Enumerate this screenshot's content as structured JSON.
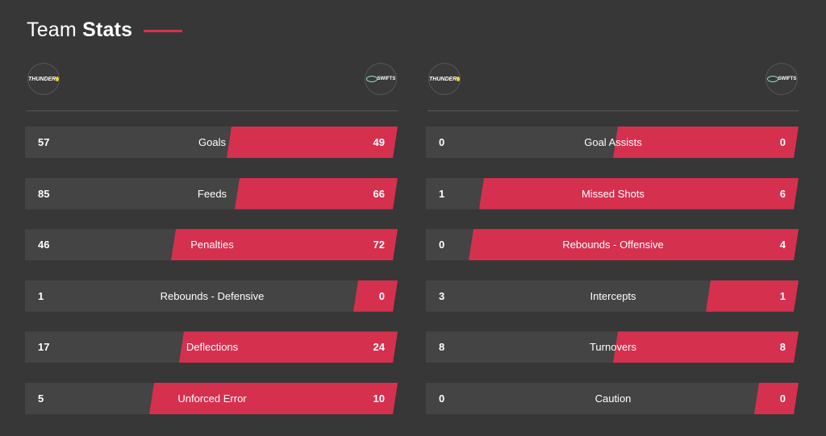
{
  "header": {
    "title_light": "Team",
    "title_bold": "Stats"
  },
  "colors": {
    "background": "#373737",
    "bar": "#444444",
    "accent": "#d6304f",
    "text": "#ffffff"
  },
  "logos": {
    "home": {
      "text": "THUNDER",
      "icon": "thunder-logo-icon"
    },
    "away": {
      "text": "SWIFTS",
      "icon": "swifts-logo-icon"
    }
  },
  "panels": [
    {
      "rows": [
        {
          "label": "Goals",
          "home": "57",
          "away": "49",
          "away_share": 0.46
        },
        {
          "label": "Feeds",
          "home": "85",
          "away": "66",
          "away_share": 0.44
        },
        {
          "label": "Penalties",
          "home": "46",
          "away": "72",
          "away_share": 0.61
        },
        {
          "label": "Rebounds - Defensive",
          "home": "1",
          "away": "0",
          "away_share": 0.12
        },
        {
          "label": "Deflections",
          "home": "17",
          "away": "24",
          "away_share": 0.59
        },
        {
          "label": "Unforced Error",
          "home": "5",
          "away": "10",
          "away_share": 0.67
        }
      ]
    },
    {
      "rows": [
        {
          "label": "Goal Assists",
          "home": "0",
          "away": "0",
          "away_share": 0.5
        },
        {
          "label": "Missed Shots",
          "home": "1",
          "away": "6",
          "away_share": 0.86
        },
        {
          "label": "Rebounds - Offensive",
          "home": "0",
          "away": "4",
          "away_share": 0.89
        },
        {
          "label": "Intercepts",
          "home": "3",
          "away": "1",
          "away_share": 0.25
        },
        {
          "label": "Turnovers",
          "home": "8",
          "away": "8",
          "away_share": 0.5
        },
        {
          "label": "Caution",
          "home": "0",
          "away": "0",
          "away_share": 0.12
        }
      ]
    }
  ]
}
